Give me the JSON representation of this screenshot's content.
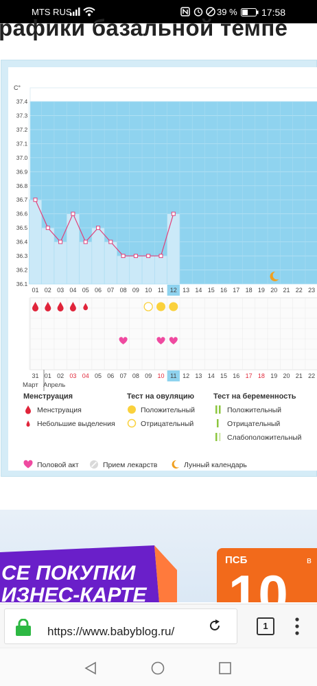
{
  "status_bar": {
    "carrier": "MTS RUS",
    "battery": "39 %",
    "time": "17:58",
    "icons": [
      "signal-icon",
      "wifi-icon",
      "nfc-icon",
      "alarm-icon",
      "dnd-icon",
      "battery-icon"
    ]
  },
  "page": {
    "heading": "рафики базальной темпе"
  },
  "chart_data": {
    "type": "line",
    "ylabel": "C°",
    "ylim": [
      36.1,
      37.4
    ],
    "y_ticks": [
      "37.4",
      "37.3",
      "37.2",
      "37.1",
      "37.0",
      "36.9",
      "36.8",
      "36.7",
      "36.6",
      "36.5",
      "36.4",
      "36.3",
      "36.2",
      "36.1"
    ],
    "cycle_days": [
      "01",
      "02",
      "03",
      "04",
      "05",
      "06",
      "07",
      "08",
      "09",
      "10",
      "11",
      "12",
      "13",
      "14",
      "15",
      "16",
      "17",
      "18",
      "19",
      "20",
      "21",
      "22",
      "23"
    ],
    "highlighted_cycle_day": "12",
    "temperature_values": [
      36.7,
      36.5,
      36.4,
      36.6,
      36.4,
      36.5,
      36.4,
      36.3,
      36.3,
      36.3,
      36.3,
      36.6
    ],
    "menstruation_days": [
      "01",
      "02",
      "03",
      "04",
      "05"
    ],
    "menstruation_light_days": [
      "05"
    ],
    "ovulation_test_negative_days": [
      "10"
    ],
    "ovulation_test_positive_days": [
      "11",
      "12"
    ],
    "intercourse_days": [
      "08",
      "11",
      "12"
    ],
    "moon_day": "20",
    "calendar_dates": [
      "31",
      "01",
      "02",
      "03",
      "04",
      "05",
      "06",
      "07",
      "08",
      "09",
      "10",
      "11",
      "12",
      "13",
      "14",
      "15",
      "16",
      "17",
      "18",
      "19",
      "20",
      "21",
      "22"
    ],
    "red_calendar_dates": [
      "03",
      "04",
      "10",
      "17",
      "18"
    ],
    "highlighted_calendar_date": "11",
    "month_labels": [
      "Март",
      "Апрель"
    ],
    "colors": {
      "luteal_bg": "#8fd3ef",
      "bar_fill": "#cbe9f8",
      "line": "#e0407a",
      "drop": "#e0243a",
      "heart": "#ef4aa0",
      "ovulation": "#fad13c",
      "moon": "#f0a020",
      "test_green": "#8cc63e"
    }
  },
  "legend": {
    "menstruation_title": "Менструация",
    "menstruation": "Менструация",
    "light_discharge": "Небольшие выделения",
    "ovulation_title": "Тест на овуляцию",
    "ovulation_positive": "Положительный",
    "ovulation_negative": "Отрицательный",
    "pregnancy_title": "Тест на беременность",
    "pregnancy_positive": "Положительный",
    "pregnancy_negative": "Отрицательный",
    "pregnancy_weak": "Слабоположительный",
    "intercourse": "Половой акт",
    "medication": "Прием лекарств",
    "lunar_calendar": "Лунный календарь"
  },
  "ad": {
    "left_text_1": "СЕ ПОКУПКИ",
    "left_text_2": "ИЗНЕС-КАРТЕ",
    "brand": "ПСБ",
    "brand_suffix": "в",
    "big_number": "10"
  },
  "browser": {
    "url": "https://www.babyblog.ru/",
    "tab_count": "1"
  }
}
